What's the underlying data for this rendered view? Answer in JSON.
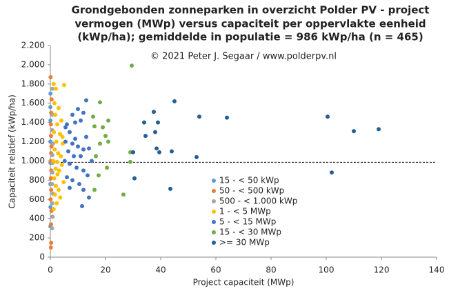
{
  "chart_data": {
    "type": "scatter",
    "title": [
      "Grondgebonden zonneparken in overzicht Polder PV - project",
      "vermogen (MWp) versus capaciteit per oppervlakte eenheid",
      "(kWp/ha); gemiddelde in populatie = 986 kWp/ha (n = 465)"
    ],
    "subtitle": "© 2021 Peter J. Segaar / www.polderpv.nl",
    "x_label": "Project capaciteit (MWp)",
    "y_label": "Capaciteit relatief (kWp/ha)",
    "xlim": [
      0,
      140
    ],
    "xticks": [
      0,
      20,
      40,
      60,
      80,
      100,
      120,
      140
    ],
    "ylim": [
      0,
      2200
    ],
    "yticks": [
      0,
      200,
      400,
      600,
      800,
      {
        "value": 1000,
        "label": "1.000"
      },
      {
        "value": 1200,
        "label": "1.200"
      },
      {
        "value": 1400,
        "label": "1.400"
      },
      {
        "value": 1600,
        "label": "1.600"
      },
      {
        "value": 1800,
        "label": "1.800"
      },
      {
        "value": 2000,
        "label": "2.000"
      },
      {
        "value": 2200,
        "label": "2.200"
      }
    ],
    "reference_line": 986,
    "legend": "center-right",
    "series": [
      {
        "name": "15 - < 50 kWp",
        "color": "#5b9bd5",
        "x": [
          0.03,
          0.04,
          0.02,
          0.05,
          0.03,
          0.04,
          0.02,
          0.05
        ],
        "y": [
          320,
          520,
          760,
          980,
          1200,
          1420,
          1560,
          1700
        ]
      },
      {
        "name": "50 - < 500 kWp",
        "color": "#ed7d31",
        "x": [
          0.2,
          0.3,
          0.25,
          0.4,
          0.1,
          0.3,
          0.2,
          0.35,
          0.15,
          0.3,
          0.4,
          0.25,
          0.2,
          0.3,
          0.45,
          0.1
        ],
        "y": [
          100,
          150,
          340,
          480,
          600,
          700,
          820,
          900,
          1000,
          1080,
          1150,
          1260,
          1380,
          1500,
          1640,
          1870
        ]
      },
      {
        "name": "500 - < 1.000 kWp",
        "color": "#a5a5a5",
        "x": [
          0.6,
          0.8,
          0.7,
          0.9,
          0.6,
          0.75,
          0.85,
          0.7,
          0.95,
          0.65,
          0.8,
          0.7
        ],
        "y": [
          300,
          420,
          560,
          660,
          760,
          880,
          980,
          1060,
          1180,
          1320,
          1480,
          1750
        ]
      },
      {
        "name": "1 - < 5 MWp",
        "color": "#ffc000",
        "x": [
          1.2,
          2.0,
          5.0,
          1.5,
          3.0,
          1.8,
          4.0,
          2.5,
          1.3,
          3.5,
          2.2,
          4.5,
          1.6,
          2.8,
          3.8,
          1.1,
          2.4,
          4.2,
          1.9,
          3.2,
          2.6,
          1.4,
          4.8,
          2.0,
          3.0,
          1.7,
          3.6,
          2.3,
          1.2,
          4.4
        ],
        "y": [
          1800,
          1750,
          1790,
          1600,
          1550,
          1480,
          1420,
          1380,
          1300,
          1280,
          1200,
          1180,
          1120,
          1080,
          1050,
          1000,
          990,
          960,
          920,
          900,
          860,
          820,
          780,
          740,
          700,
          650,
          620,
          560,
          500,
          1250
        ]
      },
      {
        "name": "5 - < 15 MWp",
        "color": "#4472c4",
        "x": [
          13,
          10,
          12,
          8,
          9,
          11,
          6,
          7,
          5.5,
          13,
          9,
          8,
          5.5,
          10,
          12,
          14,
          6.5,
          8.5,
          11,
          15,
          5.2,
          7,
          9.5,
          12,
          13.5,
          6,
          8,
          10.5,
          12,
          11.5,
          7,
          14
        ],
        "y": [
          1630,
          1540,
          1500,
          1480,
          1400,
          1420,
          1380,
          1300,
          1350,
          1250,
          1230,
          1180,
          1200,
          1150,
          1120,
          1130,
          1100,
          1050,
          1050,
          1000,
          1000,
          970,
          930,
          900,
          850,
          830,
          800,
          760,
          700,
          530,
          720,
          620
        ]
      },
      {
        "name": "15 - < 30 MWp",
        "color": "#70ad47",
        "x": [
          29.5,
          18,
          15.5,
          16,
          19,
          20,
          21,
          18,
          21,
          16.5,
          20.5,
          17.5,
          29,
          29,
          26.5,
          16
        ],
        "y": [
          1990,
          1610,
          1460,
          1360,
          1350,
          1260,
          1420,
          1180,
          1200,
          1050,
          930,
          850,
          1090,
          990,
          650,
          700
        ]
      },
      {
        "name": ">= 30 MWp",
        "color": "#255e91",
        "x": [
          37.5,
          38,
          39,
          38.5,
          39.5,
          34,
          34.5,
          30,
          30.5,
          44,
          43.5,
          45,
          53,
          54,
          64,
          100.5,
          102,
          110,
          119
        ],
        "y": [
          1510,
          1300,
          1400,
          1130,
          1090,
          1400,
          1260,
          1090,
          820,
          1100,
          710,
          1620,
          1040,
          1460,
          1450,
          1460,
          880,
          1310,
          1330
        ]
      }
    ]
  }
}
